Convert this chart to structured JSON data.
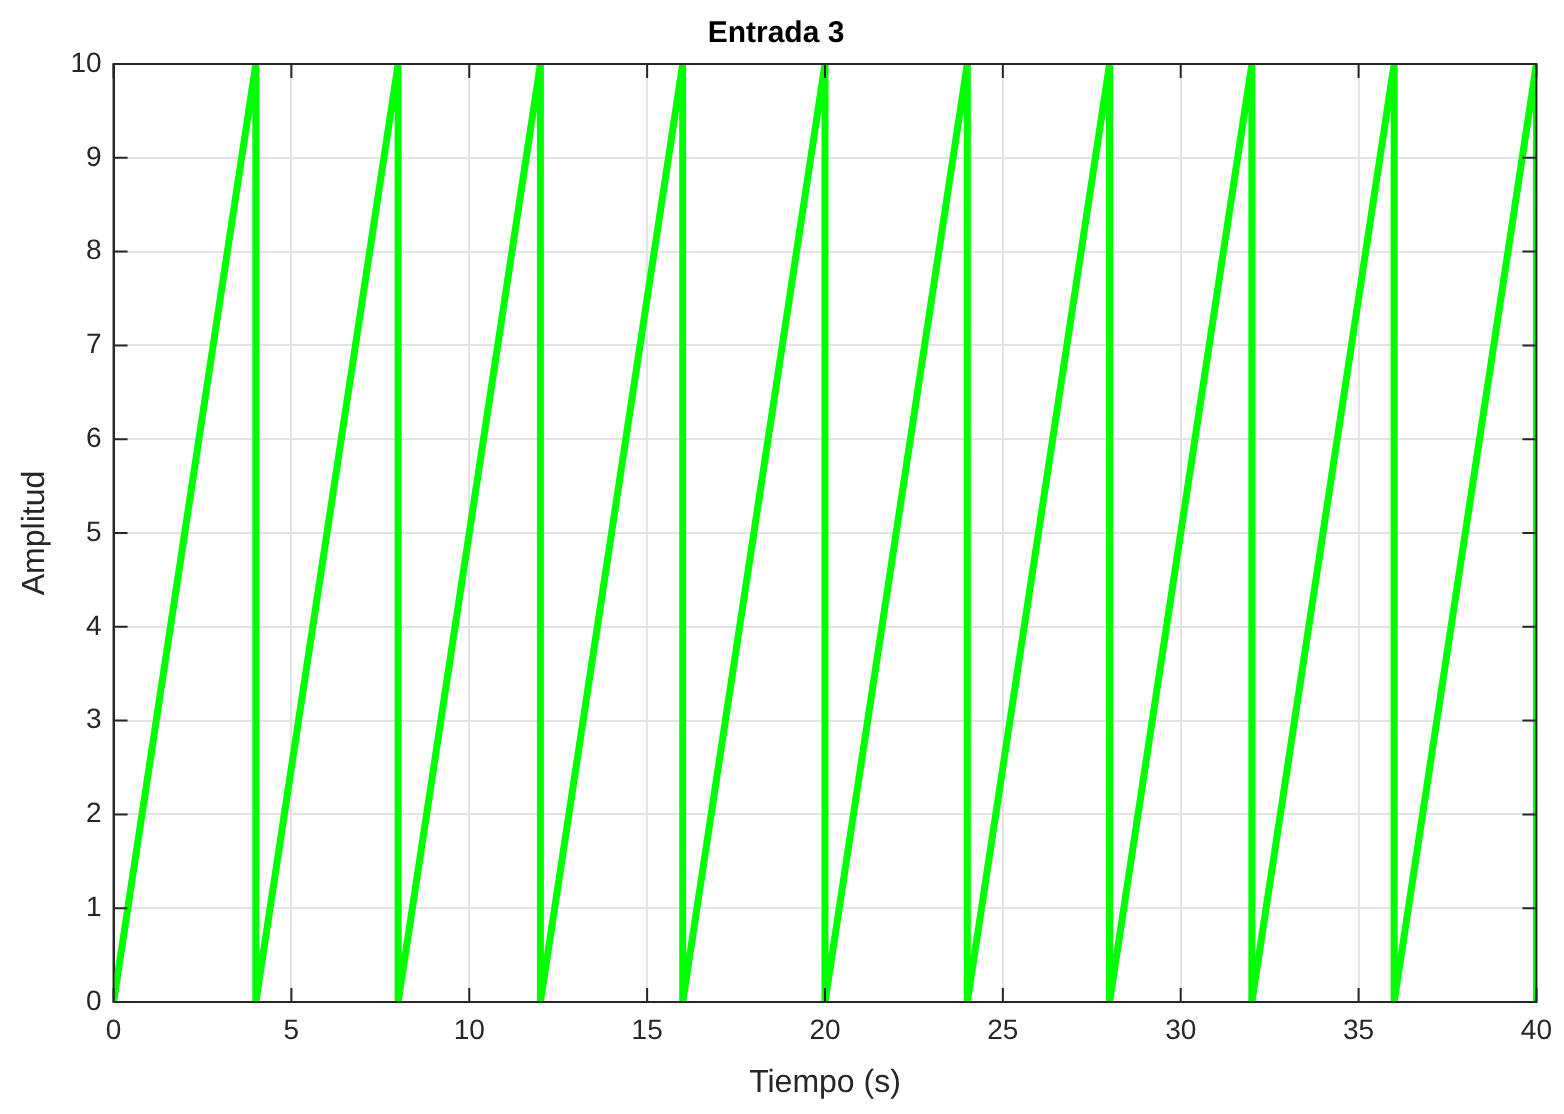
{
  "chart_data": {
    "type": "line",
    "title": "Entrada 3",
    "xlabel": "Tiempo (s)",
    "ylabel": "Amplitud",
    "x": [
      0,
      4,
      4,
      8,
      8,
      12,
      12,
      16,
      16,
      20,
      20,
      24,
      24,
      28,
      28,
      32,
      32,
      36,
      36,
      40,
      40
    ],
    "series": [
      {
        "color": "#00ff00",
        "values": [
          0,
          10,
          0,
          10,
          0,
          10,
          0,
          10,
          0,
          10,
          0,
          10,
          0,
          10,
          0,
          10,
          0,
          10,
          0,
          10,
          0
        ]
      }
    ],
    "xlim": [
      0,
      40
    ],
    "xticks": [
      0,
      5,
      10,
      15,
      20,
      25,
      30,
      35,
      40
    ],
    "ylim": [
      0,
      10
    ],
    "yticks": [
      0,
      1,
      2,
      3,
      4,
      5,
      6,
      7,
      8,
      9,
      10
    ],
    "grid": true,
    "legend": false,
    "marker": "none",
    "line_style": "solid"
  }
}
